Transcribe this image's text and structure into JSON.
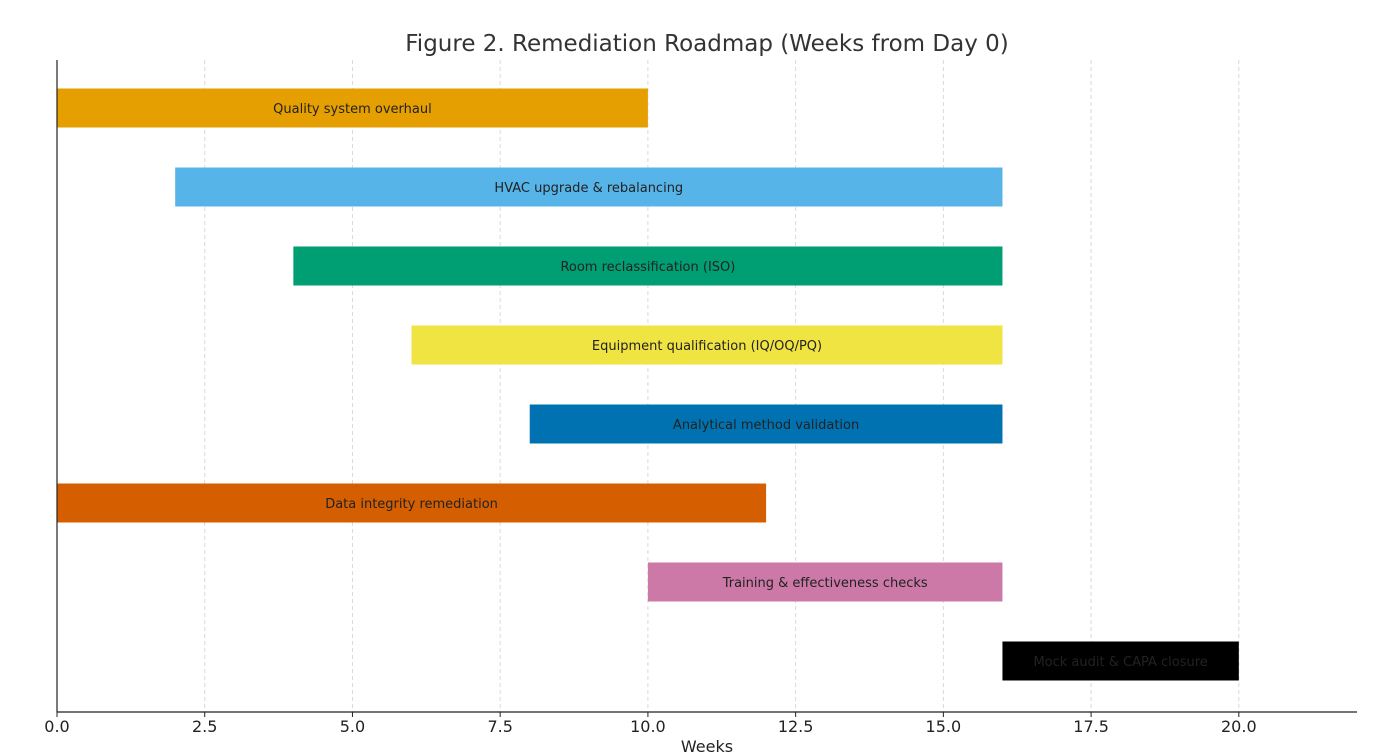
{
  "chart_data": {
    "type": "gantt",
    "title": "Figure 2. Remediation Roadmap (Weeks from Day 0)",
    "xlabel": "Weeks",
    "ylabel": "",
    "xlim": [
      0,
      22
    ],
    "xticks": [
      0,
      2.5,
      5,
      7.5,
      10,
      12.5,
      15,
      17.5,
      20
    ],
    "xtick_labels": [
      "0.0",
      "2.5",
      "5.0",
      "7.5",
      "10.0",
      "12.5",
      "15.0",
      "17.5",
      "20.0"
    ],
    "grid": "vertical dashed",
    "tasks": [
      {
        "label": "Quality system overhaul",
        "start": 0,
        "end": 10,
        "color": "#E69F00"
      },
      {
        "label": "HVAC upgrade & rebalancing",
        "start": 2,
        "end": 16,
        "color": "#56B4E9"
      },
      {
        "label": "Room reclassification (ISO)",
        "start": 4,
        "end": 16,
        "color": "#009E73"
      },
      {
        "label": "Equipment qualification (IQ/OQ/PQ)",
        "start": 6,
        "end": 16,
        "color": "#F0E442"
      },
      {
        "label": "Analytical method validation",
        "start": 8,
        "end": 16,
        "color": "#0072B2"
      },
      {
        "label": "Data integrity remediation",
        "start": 0,
        "end": 12,
        "color": "#D55E00"
      },
      {
        "label": "Training & effectiveness checks",
        "start": 10,
        "end": 16,
        "color": "#CC79A7"
      },
      {
        "label": "Mock audit & CAPA closure",
        "start": 16,
        "end": 20,
        "color": "#000000"
      }
    ]
  }
}
